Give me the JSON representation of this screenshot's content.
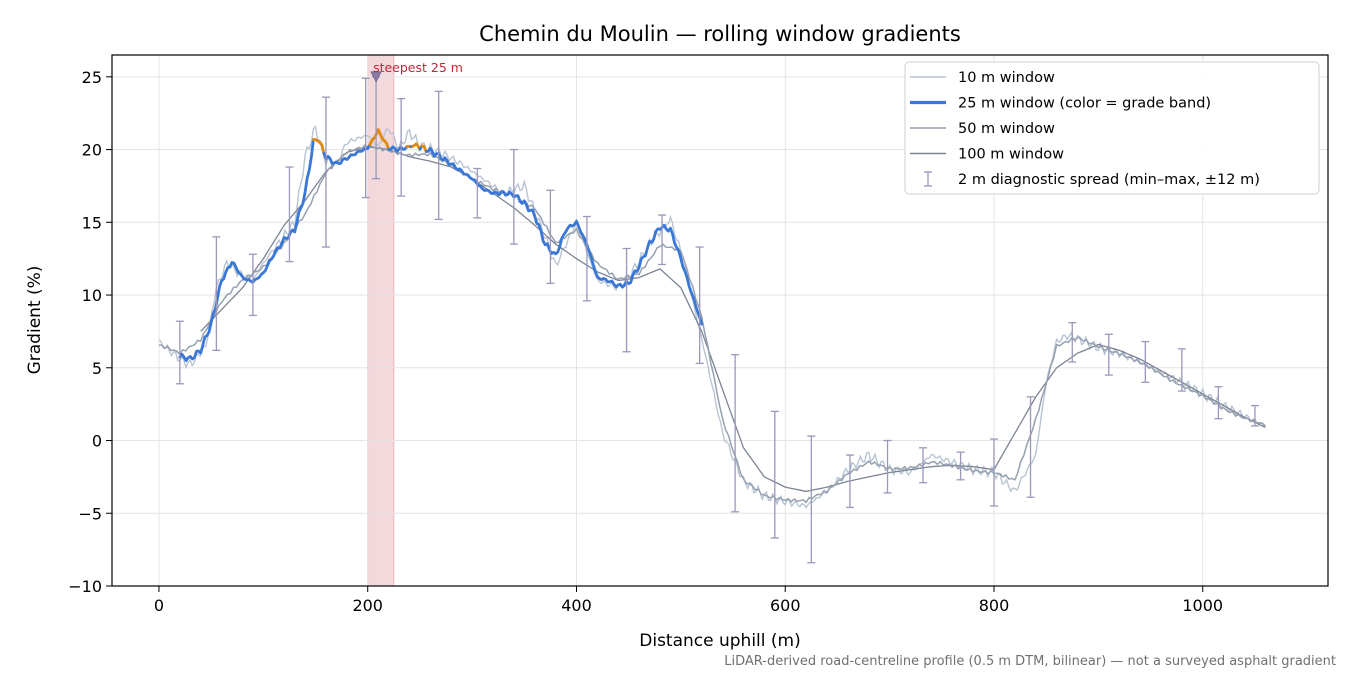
{
  "chart_data": {
    "type": "line",
    "title": "Chemin du Moulin — rolling window gradients",
    "xlabel": "Distance uphill (m)",
    "ylabel": "Gradient (%)",
    "xlim": [
      -45,
      1120
    ],
    "ylim": [
      -10,
      26.5
    ],
    "xticks": [
      0,
      200,
      400,
      600,
      800,
      1000
    ],
    "yticks": [
      -10,
      -5,
      0,
      5,
      10,
      15,
      20,
      25
    ],
    "ytick_labels": [
      "−10",
      "−5",
      "0",
      "5",
      "10",
      "15",
      "20",
      "25"
    ],
    "grid": true,
    "legend_position": "top-right",
    "footnote": "LiDAR-derived road-centreline profile (0.5 m DTM, bilinear) — not a surveyed asphalt gradient",
    "highlight": {
      "x_range": [
        200,
        225
      ],
      "label": "steepest 25 m",
      "marker_x": 208,
      "marker_y": 25
    },
    "colors": {
      "w10": "#b8c4d2",
      "w25": "#3a78d8",
      "w25_steep": "#e08a0b",
      "w50": "#95a0b0",
      "w100": "#7c8494",
      "spread": "#9a97bb",
      "band": "#f2d2d6",
      "annot": "#c0283a"
    },
    "series": [
      {
        "name": "10 m window",
        "x": [
          0,
          20,
          30,
          45,
          55,
          65,
          75,
          90,
          100,
          115,
          130,
          140,
          150,
          160,
          170,
          180,
          200,
          210,
          220,
          230,
          240,
          250,
          270,
          290,
          310,
          330,
          350,
          370,
          380,
          390,
          400,
          410,
          420,
          440,
          450,
          470,
          485,
          490,
          500,
          510,
          520,
          540,
          560,
          580,
          600,
          620,
          640,
          660,
          680,
          700,
          720,
          740,
          760,
          780,
          800,
          820,
          840,
          850,
          860,
          870,
          880,
          900,
          920,
          940,
          960,
          980,
          1000,
          1020,
          1040,
          1060
        ],
        "y": [
          6.8,
          5.6,
          5.2,
          6.5,
          10.5,
          12.2,
          11.6,
          11.0,
          12.2,
          13.6,
          15.0,
          19.5,
          21.5,
          19.2,
          19.0,
          20.5,
          21.0,
          20.2,
          21.5,
          20.1,
          21.2,
          20.3,
          19.8,
          19.0,
          18.0,
          17.0,
          17.5,
          14.0,
          12.0,
          13.5,
          15.0,
          13.0,
          11.0,
          10.5,
          11.2,
          13.5,
          14.8,
          15.2,
          13.0,
          10.0,
          7.0,
          0.5,
          -2.8,
          -3.8,
          -4.2,
          -4.5,
          -3.5,
          -2.0,
          -1.0,
          -2.0,
          -2.2,
          -1.0,
          -1.5,
          -2.0,
          -2.2,
          -3.5,
          -1.0,
          4.0,
          6.8,
          7.2,
          7.0,
          6.4,
          6.0,
          5.4,
          4.7,
          4.0,
          3.2,
          2.4,
          1.7,
          1.0
        ]
      },
      {
        "name": "25 m window (color = grade band)",
        "x": [
          20,
          30,
          40,
          50,
          60,
          70,
          80,
          90,
          100,
          110,
          120,
          130,
          140,
          148,
          152,
          160,
          170,
          180,
          190,
          200,
          210,
          220,
          230,
          245,
          250,
          260,
          270,
          280,
          290,
          300,
          310,
          320,
          330,
          340,
          350,
          360,
          370,
          380,
          390,
          400,
          410,
          420,
          430,
          440,
          450,
          460,
          470,
          480,
          490,
          500,
          510,
          520
        ],
        "y": [
          5.8,
          5.6,
          6.2,
          8.0,
          11.0,
          12.3,
          11.2,
          10.9,
          11.5,
          12.8,
          13.8,
          14.5,
          17.0,
          20.5,
          20.8,
          19.5,
          19.0,
          19.4,
          19.8,
          20.1,
          21.3,
          20.1,
          20.0,
          20.3,
          20.2,
          19.9,
          19.5,
          19.0,
          18.5,
          18.0,
          17.3,
          17.0,
          17.0,
          16.9,
          16.3,
          15.5,
          13.5,
          12.7,
          14.5,
          15.0,
          13.5,
          11.2,
          11.0,
          10.6,
          10.8,
          12.0,
          13.5,
          14.7,
          14.5,
          12.5,
          10.2,
          8.0
        ]
      },
      {
        "name": "50 m window",
        "x": [
          0,
          20,
          40,
          60,
          80,
          100,
          120,
          140,
          160,
          180,
          200,
          220,
          240,
          260,
          280,
          300,
          320,
          340,
          360,
          380,
          400,
          420,
          440,
          460,
          480,
          500,
          520,
          540,
          560,
          580,
          600,
          620,
          640,
          660,
          680,
          700,
          720,
          740,
          760,
          780,
          800,
          820,
          840,
          860,
          880,
          900,
          920,
          940,
          960,
          980,
          1000,
          1020,
          1040,
          1060
        ],
        "y": [
          6.5,
          6.0,
          7.0,
          9.5,
          11.0,
          12.0,
          13.5,
          15.5,
          18.5,
          19.8,
          20.2,
          20.0,
          19.6,
          19.6,
          19.0,
          18.0,
          17.2,
          16.9,
          16.0,
          13.5,
          14.5,
          12.2,
          11.0,
          11.5,
          13.5,
          13.0,
          8.5,
          1.5,
          -2.8,
          -3.8,
          -4.0,
          -4.2,
          -3.5,
          -2.2,
          -1.5,
          -2.0,
          -1.8,
          -1.5,
          -1.8,
          -2.0,
          -2.2,
          -2.8,
          1.5,
          6.5,
          7.0,
          6.5,
          6.0,
          5.3,
          4.6,
          3.8,
          3.0,
          2.2,
          1.6,
          1.0
        ]
      },
      {
        "name": "100 m window",
        "x": [
          40,
          60,
          80,
          100,
          120,
          140,
          160,
          180,
          200,
          220,
          240,
          260,
          280,
          300,
          320,
          340,
          360,
          380,
          400,
          420,
          440,
          460,
          480,
          500,
          520,
          540,
          560,
          580,
          600,
          620,
          640,
          660,
          680,
          700,
          720,
          740,
          760,
          780,
          800,
          820,
          840,
          860,
          880,
          900,
          920,
          940,
          960,
          980,
          1000,
          1020,
          1040,
          1060
        ],
        "y": [
          7.5,
          9.0,
          10.5,
          12.5,
          14.8,
          16.5,
          18.5,
          19.8,
          20.2,
          20.0,
          19.5,
          19.2,
          18.8,
          18.0,
          17.0,
          16.0,
          14.8,
          13.5,
          12.5,
          11.6,
          11.0,
          11.2,
          11.8,
          10.5,
          7.5,
          3.5,
          -0.5,
          -2.5,
          -3.2,
          -3.5,
          -3.2,
          -2.8,
          -2.5,
          -2.2,
          -2.0,
          -1.8,
          -1.7,
          -1.8,
          -2.0,
          0.5,
          3.0,
          5.0,
          6.0,
          6.6,
          6.2,
          5.6,
          4.8,
          4.0,
          3.2,
          2.4,
          1.6,
          0.9
        ]
      },
      {
        "name": "2 m diagnostic spread (min–max, ±12 m)",
        "x": [
          20,
          55,
          90,
          125,
          160,
          198,
          208,
          232,
          268,
          305,
          340,
          375,
          410,
          448,
          482,
          518,
          552,
          590,
          625,
          662,
          698,
          732,
          768,
          800,
          835,
          875,
          910,
          945,
          980,
          1015,
          1050
        ],
        "low": [
          3.9,
          6.2,
          8.6,
          12.3,
          13.3,
          16.7,
          18.0,
          16.8,
          15.2,
          15.3,
          13.5,
          10.8,
          9.6,
          6.1,
          12.1,
          5.3,
          -4.9,
          -6.7,
          -8.4,
          -4.6,
          -3.6,
          -2.9,
          -2.7,
          -4.5,
          -3.9,
          5.4,
          4.5,
          4.0,
          3.4,
          1.5,
          1.0
        ],
        "high": [
          8.2,
          14.0,
          12.8,
          18.8,
          23.6,
          24.9,
          25.0,
          23.5,
          24.0,
          18.7,
          20.0,
          17.2,
          15.4,
          13.2,
          15.5,
          13.3,
          5.9,
          2.0,
          0.3,
          -1.0,
          0.0,
          -0.5,
          -0.8,
          0.1,
          3.0,
          8.1,
          7.3,
          6.8,
          6.3,
          3.7,
          2.4
        ]
      }
    ]
  }
}
